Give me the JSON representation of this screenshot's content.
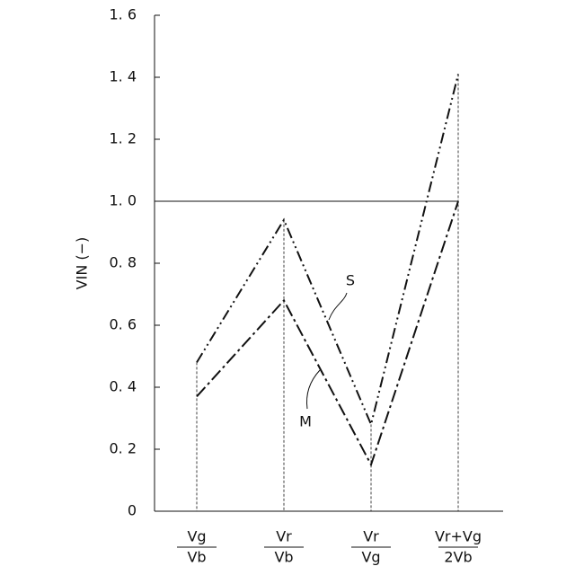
{
  "chart_data": {
    "type": "line",
    "y_label": "VIN (−)",
    "categories": [
      [
        "Vg",
        "Vb"
      ],
      [
        "Vr",
        "Vb"
      ],
      [
        "Vr",
        "Vg"
      ],
      [
        "Vr+Vg",
        "2Vb"
      ]
    ],
    "series": [
      {
        "name": "S",
        "color": "#111",
        "dash": "12,4,2,4,2,4",
        "values": [
          0.48,
          0.94,
          0.28,
          1.41
        ]
      },
      {
        "name": "M",
        "color": "#111",
        "dash": "14,4,3,4",
        "values": [
          0.37,
          0.68,
          0.15,
          1.0
        ]
      }
    ],
    "ylim": [
      0,
      1.6
    ],
    "yticks": [
      0,
      {
        "value": 0.2,
        "label": "0. 2"
      },
      {
        "value": 0.4,
        "label": "0. 4"
      },
      {
        "value": 0.6,
        "label": "0. 6"
      },
      {
        "value": 0.8,
        "label": "0. 8"
      },
      {
        "value": 1.0,
        "label": "1. 0"
      },
      {
        "value": 1.2,
        "label": "1. 2"
      },
      {
        "value": 1.4,
        "label": "1. 4"
      },
      {
        "value": 1.6,
        "label": "1. 6"
      }
    ],
    "reference_line": 1.0
  }
}
